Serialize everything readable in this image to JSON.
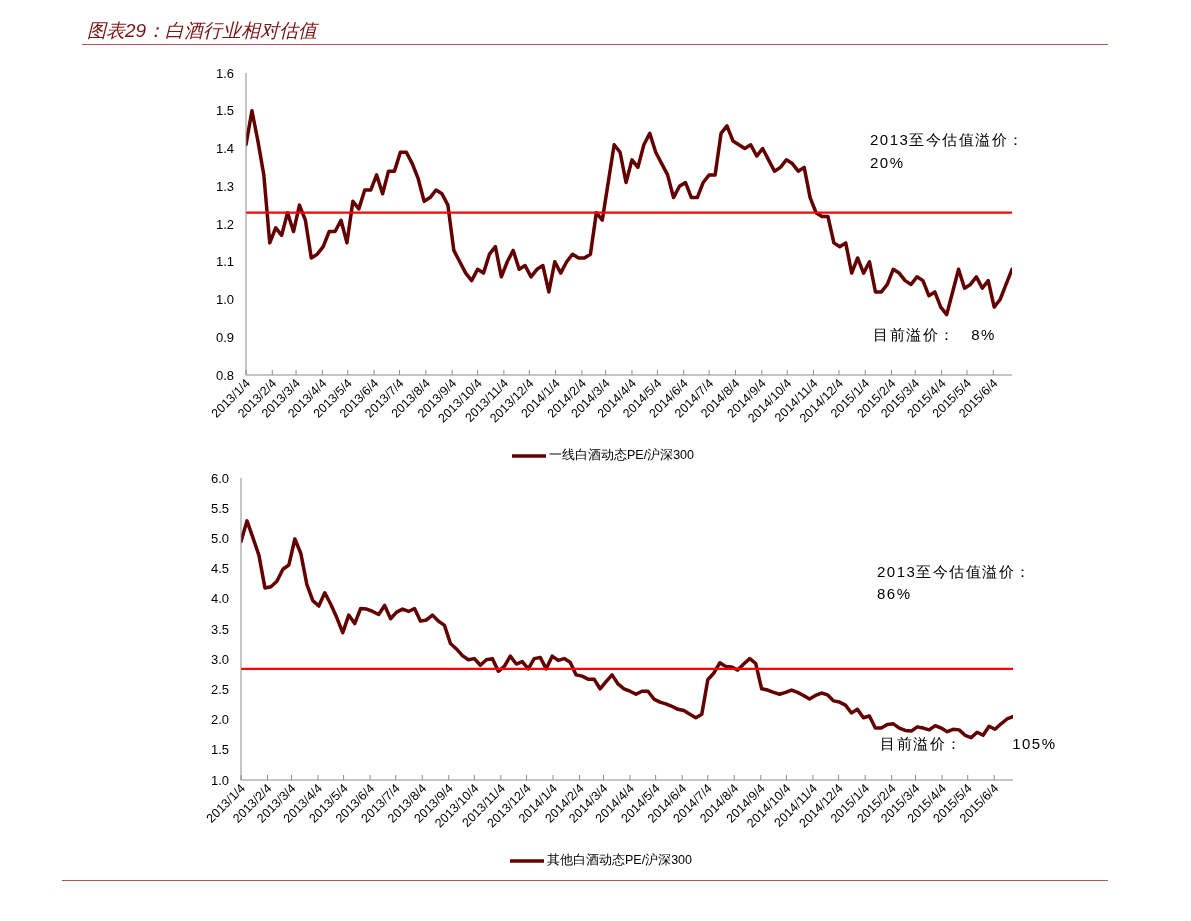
{
  "chart_data": [
    {
      "type": "line",
      "title": "图表29：白酒行业相对估值",
      "x": [
        "2013-01-04",
        "2013-01-11",
        "2013-01-18",
        "2013-01-25",
        "2013-02-01",
        "2013-02-08",
        "2013-02-15",
        "2013-02-22",
        "2013-03-01",
        "2013-03-08",
        "2013-03-15",
        "2013-03-22",
        "2013-03-29",
        "2013-04-05",
        "2013-04-12",
        "2013-04-19",
        "2013-04-26",
        "2013-05-03",
        "2013-05-10",
        "2013-05-17",
        "2013-05-24",
        "2013-05-31",
        "2013-06-07",
        "2013-06-14",
        "2013-06-21",
        "2013-06-28",
        "2013-07-05",
        "2013-07-12",
        "2013-07-19",
        "2013-07-26",
        "2013-08-02",
        "2013-08-09",
        "2013-08-16",
        "2013-08-23",
        "2013-08-30",
        "2013-09-06",
        "2013-09-13",
        "2013-09-20",
        "2013-09-27",
        "2013-10-04",
        "2013-10-11",
        "2013-10-18",
        "2013-10-25",
        "2013-11-01",
        "2013-11-08",
        "2013-11-15",
        "2013-11-22",
        "2013-11-29",
        "2013-12-06",
        "2013-12-13",
        "2013-12-20",
        "2013-12-27",
        "2014-01-03",
        "2014-01-10",
        "2014-01-17",
        "2014-01-24",
        "2014-01-31",
        "2014-02-07",
        "2014-02-14",
        "2014-02-21",
        "2014-02-28",
        "2014-03-07",
        "2014-03-14",
        "2014-03-21",
        "2014-03-28",
        "2014-04-04",
        "2014-04-11",
        "2014-04-18",
        "2014-04-25",
        "2014-05-02",
        "2014-05-09",
        "2014-05-16",
        "2014-05-23",
        "2014-05-30",
        "2014-06-06",
        "2014-06-13",
        "2014-06-20",
        "2014-06-27",
        "2014-07-04",
        "2014-07-11",
        "2014-07-18",
        "2014-07-25",
        "2014-08-01",
        "2014-08-08",
        "2014-08-15",
        "2014-08-22",
        "2014-08-29",
        "2014-09-05",
        "2014-09-12",
        "2014-09-19",
        "2014-09-26",
        "2014-10-03",
        "2014-10-10",
        "2014-10-17",
        "2014-10-24",
        "2014-10-31",
        "2014-11-07",
        "2014-11-14",
        "2014-11-21",
        "2014-11-28",
        "2014-12-05",
        "2014-12-12",
        "2014-12-19",
        "2014-12-26",
        "2015-01-02",
        "2015-01-09",
        "2015-01-16",
        "2015-01-23",
        "2015-01-30",
        "2015-02-06",
        "2015-02-13",
        "2015-02-20",
        "2015-02-27",
        "2015-03-06",
        "2015-03-13",
        "2015-03-20",
        "2015-03-27",
        "2015-04-03",
        "2015-04-10",
        "2015-04-17",
        "2015-04-24",
        "2015-05-01",
        "2015-05-08",
        "2015-05-15",
        "2015-05-22",
        "2015-05-29",
        "2015-06-05",
        "2015-06-12",
        "2015-06-19",
        "2015-06-26"
      ],
      "series": [
        {
          "name": "一线白酒动态PE/沪深300",
          "color": "#630000",
          "values": [
            1.41,
            1.5,
            1.42,
            1.33,
            1.15,
            1.19,
            1.17,
            1.23,
            1.18,
            1.25,
            1.21,
            1.11,
            1.12,
            1.14,
            1.18,
            1.18,
            1.21,
            1.15,
            1.26,
            1.24,
            1.29,
            1.29,
            1.33,
            1.28,
            1.34,
            1.34,
            1.39,
            1.39,
            1.36,
            1.32,
            1.26,
            1.27,
            1.29,
            1.28,
            1.25,
            1.13,
            1.1,
            1.07,
            1.05,
            1.08,
            1.07,
            1.12,
            1.14,
            1.06,
            1.1,
            1.13,
            1.08,
            1.09,
            1.06,
            1.08,
            1.09,
            1.02,
            1.1,
            1.07,
            1.1,
            1.12,
            1.11,
            1.11,
            1.12,
            1.23,
            1.21,
            1.31,
            1.41,
            1.39,
            1.31,
            1.37,
            1.35,
            1.41,
            1.44,
            1.39,
            1.36,
            1.33,
            1.27,
            1.3,
            1.31,
            1.27,
            1.27,
            1.31,
            1.33,
            1.33,
            1.44,
            1.46,
            1.42,
            1.41,
            1.4,
            1.41,
            1.38,
            1.4,
            1.37,
            1.34,
            1.35,
            1.37,
            1.36,
            1.34,
            1.35,
            1.27,
            1.23,
            1.22,
            1.22,
            1.15,
            1.14,
            1.15,
            1.07,
            1.11,
            1.07,
            1.1,
            1.02,
            1.02,
            1.04,
            1.08,
            1.07,
            1.05,
            1.04,
            1.06,
            1.05,
            1.01,
            1.02,
            0.98,
            0.96,
            1.02,
            1.08,
            1.03,
            1.04,
            1.06,
            1.03,
            1.05,
            0.98,
            1.0,
            1.04,
            1.08
          ]
        }
      ],
      "xlim": [
        "2013-01-04",
        "2015-06-26"
      ],
      "xticks": [
        {
          "value": "2013-01-04",
          "label": "2013/1/4"
        },
        {
          "value": "2013-02-04",
          "label": "2013/2/4"
        },
        {
          "value": "2013-03-04",
          "label": "2013/3/4"
        },
        {
          "value": "2013-04-04",
          "label": "2013/4/4"
        },
        {
          "value": "2013-05-04",
          "label": "2013/5/4"
        },
        {
          "value": "2013-06-04",
          "label": "2013/6/4"
        },
        {
          "value": "2013-07-04",
          "label": "2013/7/4"
        },
        {
          "value": "2013-08-04",
          "label": "2013/8/4"
        },
        {
          "value": "2013-09-04",
          "label": "2013/9/4"
        },
        {
          "value": "2013-10-04",
          "label": "2013/10/4"
        },
        {
          "value": "2013-11-04",
          "label": "2013/11/4"
        },
        {
          "value": "2013-12-04",
          "label": "2013/12/4"
        },
        {
          "value": "2014-01-04",
          "label": "2014/1/4"
        },
        {
          "value": "2014-02-04",
          "label": "2014/2/4"
        },
        {
          "value": "2014-03-04",
          "label": "2014/3/4"
        },
        {
          "value": "2014-04-04",
          "label": "2014/4/4"
        },
        {
          "value": "2014-05-04",
          "label": "2014/5/4"
        },
        {
          "value": "2014-06-04",
          "label": "2014/6/4"
        },
        {
          "value": "2014-07-04",
          "label": "2014/7/4"
        },
        {
          "value": "2014-08-04",
          "label": "2014/8/4"
        },
        {
          "value": "2014-09-04",
          "label": "2014/9/4"
        },
        {
          "value": "2014-10-04",
          "label": "2014/10/4"
        },
        {
          "value": "2014-11-04",
          "label": "2014/11/4"
        },
        {
          "value": "2014-12-04",
          "label": "2014/12/4"
        },
        {
          "value": "2015-01-04",
          "label": "2015/1/4"
        },
        {
          "value": "2015-02-04",
          "label": "2015/2/4"
        },
        {
          "value": "2015-03-04",
          "label": "2015/3/4"
        },
        {
          "value": "2015-04-04",
          "label": "2015/4/4"
        },
        {
          "value": "2015-05-04",
          "label": "2015/5/4"
        },
        {
          "value": "2015-06-04",
          "label": "2015/6/4"
        }
      ],
      "ylim": [
        0.8,
        1.6
      ],
      "yticks": [
        0.8,
        0.9,
        {
          "value": 1,
          "label": "1.0"
        },
        1.1,
        1.2,
        1.3,
        1.4,
        1.5,
        1.6
      ],
      "ref_lines": [
        {
          "axis": "y",
          "value": 1.23,
          "color": "#ff0000"
        }
      ],
      "annotations": [
        "2013至今估值溢价：",
        "20%",
        "目前溢价： 8%"
      ],
      "legend": "bottom"
    },
    {
      "type": "line",
      "x": [
        "2013-01-04",
        "2013-01-11",
        "2013-01-18",
        "2013-01-25",
        "2013-02-01",
        "2013-02-08",
        "2013-02-15",
        "2013-02-22",
        "2013-03-01",
        "2013-03-08",
        "2013-03-15",
        "2013-03-22",
        "2013-03-29",
        "2013-04-05",
        "2013-04-12",
        "2013-04-19",
        "2013-04-26",
        "2013-05-03",
        "2013-05-10",
        "2013-05-17",
        "2013-05-24",
        "2013-05-31",
        "2013-06-07",
        "2013-06-14",
        "2013-06-21",
        "2013-06-28",
        "2013-07-05",
        "2013-07-12",
        "2013-07-19",
        "2013-07-26",
        "2013-08-02",
        "2013-08-09",
        "2013-08-16",
        "2013-08-23",
        "2013-08-30",
        "2013-09-06",
        "2013-09-13",
        "2013-09-20",
        "2013-09-27",
        "2013-10-04",
        "2013-10-11",
        "2013-10-18",
        "2013-10-25",
        "2013-11-01",
        "2013-11-08",
        "2013-11-15",
        "2013-11-22",
        "2013-11-29",
        "2013-12-06",
        "2013-12-13",
        "2013-12-20",
        "2013-12-27",
        "2014-01-03",
        "2014-01-10",
        "2014-01-17",
        "2014-01-24",
        "2014-01-31",
        "2014-02-07",
        "2014-02-14",
        "2014-02-21",
        "2014-02-28",
        "2014-03-07",
        "2014-03-14",
        "2014-03-21",
        "2014-03-28",
        "2014-04-04",
        "2014-04-11",
        "2014-04-18",
        "2014-04-25",
        "2014-05-02",
        "2014-05-09",
        "2014-05-16",
        "2014-05-23",
        "2014-05-30",
        "2014-06-06",
        "2014-06-13",
        "2014-06-20",
        "2014-06-27",
        "2014-07-04",
        "2014-07-11",
        "2014-07-18",
        "2014-07-25",
        "2014-08-01",
        "2014-08-08",
        "2014-08-15",
        "2014-08-22",
        "2014-08-29",
        "2014-09-05",
        "2014-09-12",
        "2014-09-19",
        "2014-09-26",
        "2014-10-03",
        "2014-10-10",
        "2014-10-17",
        "2014-10-24",
        "2014-10-31",
        "2014-11-07",
        "2014-11-14",
        "2014-11-21",
        "2014-11-28",
        "2014-12-05",
        "2014-12-12",
        "2014-12-19",
        "2014-12-26",
        "2015-01-02",
        "2015-01-09",
        "2015-01-16",
        "2015-01-23",
        "2015-01-30",
        "2015-02-06",
        "2015-02-13",
        "2015-02-20",
        "2015-02-27",
        "2015-03-06",
        "2015-03-13",
        "2015-03-20",
        "2015-03-27",
        "2015-04-03",
        "2015-04-10",
        "2015-04-17",
        "2015-04-24",
        "2015-05-01",
        "2015-05-08",
        "2015-05-15",
        "2015-05-22",
        "2015-05-29",
        "2015-06-05",
        "2015-06-12",
        "2015-06-19",
        "2015-06-26"
      ],
      "series": [
        {
          "name": "其他白酒动态PE/沪深300",
          "color": "#630000",
          "values": [
            4.95,
            5.29,
            5.01,
            4.72,
            4.18,
            4.2,
            4.29,
            4.49,
            4.56,
            4.99,
            4.75,
            4.24,
            3.97,
            3.88,
            4.1,
            3.91,
            3.69,
            3.44,
            3.73,
            3.59,
            3.84,
            3.83,
            3.79,
            3.74,
            3.89,
            3.67,
            3.78,
            3.83,
            3.79,
            3.84,
            3.63,
            3.65,
            3.73,
            3.63,
            3.56,
            3.26,
            3.17,
            3.06,
            2.99,
            3.01,
            2.9,
            2.99,
            3.01,
            2.8,
            2.88,
            3.05,
            2.92,
            2.96,
            2.84,
            3.01,
            3.03,
            2.84,
            3.05,
            2.98,
            3.01,
            2.95,
            2.74,
            2.72,
            2.67,
            2.67,
            2.51,
            2.63,
            2.74,
            2.59,
            2.51,
            2.47,
            2.42,
            2.47,
            2.47,
            2.34,
            2.29,
            2.26,
            2.22,
            2.17,
            2.15,
            2.09,
            2.03,
            2.09,
            2.66,
            2.77,
            2.94,
            2.88,
            2.87,
            2.82,
            2.92,
            3.01,
            2.93,
            2.51,
            2.49,
            2.45,
            2.42,
            2.45,
            2.49,
            2.45,
            2.4,
            2.34,
            2.4,
            2.44,
            2.41,
            2.31,
            2.29,
            2.24,
            2.11,
            2.17,
            2.03,
            2.06,
            1.86,
            1.86,
            1.92,
            1.93,
            1.86,
            1.82,
            1.81,
            1.88,
            1.86,
            1.83,
            1.9,
            1.86,
            1.8,
            1.84,
            1.83,
            1.74,
            1.7,
            1.79,
            1.74,
            1.89,
            1.84,
            1.93,
            2.01,
            2.05
          ]
        }
      ],
      "xlim": [
        "2013-01-04",
        "2015-06-26"
      ],
      "xticks": [
        {
          "value": "2013-01-04",
          "label": "2013/1/4"
        },
        {
          "value": "2013-02-04",
          "label": "2013/2/4"
        },
        {
          "value": "2013-03-04",
          "label": "2013/3/4"
        },
        {
          "value": "2013-04-04",
          "label": "2013/4/4"
        },
        {
          "value": "2013-05-04",
          "label": "2013/5/4"
        },
        {
          "value": "2013-06-04",
          "label": "2013/6/4"
        },
        {
          "value": "2013-07-04",
          "label": "2013/7/4"
        },
        {
          "value": "2013-08-04",
          "label": "2013/8/4"
        },
        {
          "value": "2013-09-04",
          "label": "2013/9/4"
        },
        {
          "value": "2013-10-04",
          "label": "2013/10/4"
        },
        {
          "value": "2013-11-04",
          "label": "2013/11/4"
        },
        {
          "value": "2013-12-04",
          "label": "2013/12/4"
        },
        {
          "value": "2014-01-04",
          "label": "2014/1/4"
        },
        {
          "value": "2014-02-04",
          "label": "2014/2/4"
        },
        {
          "value": "2014-03-04",
          "label": "2014/3/4"
        },
        {
          "value": "2014-04-04",
          "label": "2014/4/4"
        },
        {
          "value": "2014-05-04",
          "label": "2014/5/4"
        },
        {
          "value": "2014-06-04",
          "label": "2014/6/4"
        },
        {
          "value": "2014-07-04",
          "label": "2014/7/4"
        },
        {
          "value": "2014-08-04",
          "label": "2014/8/4"
        },
        {
          "value": "2014-09-04",
          "label": "2014/9/4"
        },
        {
          "value": "2014-10-04",
          "label": "2014/10/4"
        },
        {
          "value": "2014-11-04",
          "label": "2014/11/4"
        },
        {
          "value": "2014-12-04",
          "label": "2014/12/4"
        },
        {
          "value": "2015-01-04",
          "label": "2015/1/4"
        },
        {
          "value": "2015-02-04",
          "label": "2015/2/4"
        },
        {
          "value": "2015-03-04",
          "label": "2015/3/4"
        },
        {
          "value": "2015-04-04",
          "label": "2015/4/4"
        },
        {
          "value": "2015-05-04",
          "label": "2015/5/4"
        },
        {
          "value": "2015-06-04",
          "label": "2015/6/4"
        }
      ],
      "ylim": [
        1,
        6
      ],
      "yticks": [
        {
          "value": 1,
          "label": "1.0"
        },
        1.5,
        {
          "value": 2,
          "label": "2.0"
        },
        2.5,
        {
          "value": 3,
          "label": "3.0"
        },
        3.5,
        {
          "value": 4,
          "label": "4.0"
        },
        4.5,
        {
          "value": 5,
          "label": "5.0"
        },
        5.5,
        {
          "value": 6,
          "label": "6.0"
        }
      ],
      "ref_lines": [
        {
          "axis": "y",
          "value": 2.84,
          "color": "#ff0000"
        }
      ],
      "annotations": [
        "2013至今估值溢价：",
        "86%",
        "目前溢价： 105%"
      ],
      "legend": "bottom"
    }
  ]
}
